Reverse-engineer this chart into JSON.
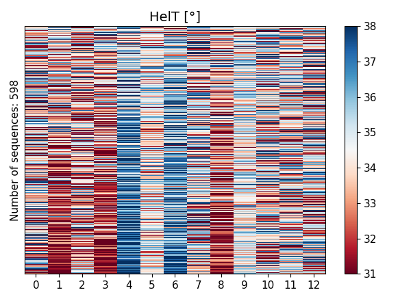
{
  "title": "HelT [°]",
  "ylabel": "Number of sequences: 598",
  "n_rows": 598,
  "n_cols": 13,
  "xtick_labels": [
    "0",
    "1",
    "2",
    "3",
    "4",
    "5",
    "6",
    "7",
    "8",
    "9",
    "10",
    "11",
    "12"
  ],
  "vmin": 31,
  "vmax": 38,
  "cmap": "RdBu",
  "colorbar_ticks": [
    31,
    32,
    33,
    34,
    35,
    36,
    37,
    38
  ],
  "col_means": [
    34.5,
    32.5,
    33.5,
    32.5,
    36.5,
    34.5,
    36.5,
    34.5,
    32.5,
    34.5,
    34.5,
    34.5,
    34.5
  ],
  "col_stds": [
    2.5,
    2.5,
    2.5,
    2.5,
    2.0,
    1.5,
    2.0,
    2.5,
    2.5,
    1.5,
    2.5,
    2.5,
    2.5
  ],
  "seed": 7,
  "title_fontsize": 14,
  "label_fontsize": 11,
  "tick_fontsize": 11,
  "fig_width": 6.0,
  "fig_height": 4.4
}
